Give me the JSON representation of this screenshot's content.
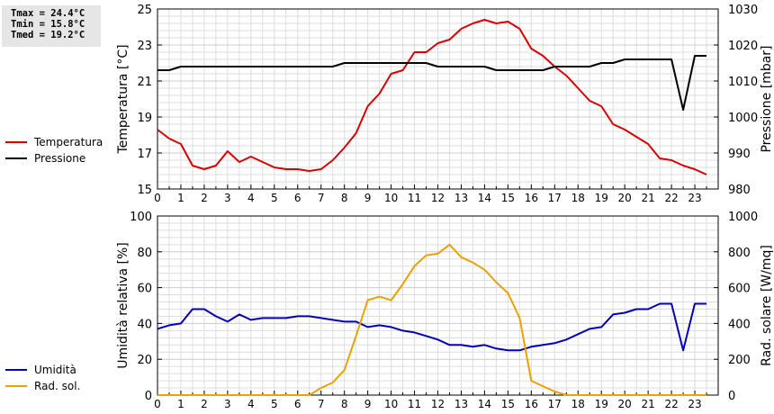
{
  "stats": [
    "Tmax = 24.4°C",
    "Tmin = 15.8°C",
    "Tmed = 19.2°C"
  ],
  "chart_data": [
    {
      "type": "line",
      "x_tick_labels": [
        "0",
        "1",
        "2",
        "3",
        "4",
        "5",
        "6",
        "7",
        "8",
        "9",
        "10",
        "11",
        "12",
        "13",
        "14",
        "15",
        "16",
        "17",
        "18",
        "19",
        "20",
        "21",
        "22",
        "23"
      ],
      "xlim": [
        0,
        24
      ],
      "ylabel": "Temperatura [°C]",
      "ylim": [
        15,
        25
      ],
      "y_ticks": [
        "15",
        "17",
        "19",
        "21",
        "23",
        "25"
      ],
      "y2label": "Pressione [mbar]",
      "y2lim": [
        980,
        1030
      ],
      "y2_ticks": [
        "980",
        "990",
        "1000",
        "1010",
        "1020",
        "1030"
      ],
      "grid": true,
      "legend_position": "left",
      "series": [
        {
          "name": "Temperatura",
          "axis": "left",
          "color": "#e00000",
          "x": [
            0,
            0.5,
            1,
            1.5,
            2,
            2.5,
            3,
            3.5,
            4,
            4.5,
            5,
            5.5,
            6,
            6.5,
            7,
            7.5,
            8,
            8.5,
            9,
            9.5,
            10,
            10.5,
            11,
            11.5,
            12,
            12.5,
            13,
            13.5,
            14,
            14.5,
            15,
            15.5,
            16,
            16.5,
            17,
            17.5,
            18,
            18.5,
            19,
            19.5,
            20,
            20.5,
            21,
            21.5,
            22,
            22.5,
            23,
            23.5
          ],
          "values": [
            18.3,
            17.8,
            17.5,
            16.3,
            16.1,
            16.3,
            17.1,
            16.5,
            16.8,
            16.5,
            16.2,
            16.1,
            16.1,
            16.0,
            16.1,
            16.6,
            17.3,
            18.1,
            19.6,
            20.3,
            21.4,
            21.6,
            22.6,
            22.6,
            23.1,
            23.3,
            23.9,
            24.2,
            24.4,
            24.2,
            24.3,
            23.9,
            22.8,
            22.4,
            21.8,
            21.3,
            20.6,
            19.9,
            19.6,
            18.6,
            18.3,
            17.9,
            17.5,
            16.7,
            16.6,
            16.3,
            16.1,
            15.8
          ]
        },
        {
          "name": "Pressione",
          "axis": "right",
          "color": "#000000",
          "x": [
            0,
            0.5,
            1,
            1.5,
            2,
            2.5,
            3,
            3.5,
            4,
            4.5,
            5,
            5.5,
            6,
            6.5,
            7,
            7.5,
            8,
            8.5,
            9,
            9.5,
            10,
            10.5,
            11,
            11.5,
            12,
            12.5,
            13,
            13.5,
            14,
            14.5,
            15,
            15.5,
            16,
            16.5,
            17,
            17.5,
            18,
            18.5,
            19,
            19.5,
            20,
            20.5,
            21,
            21.5,
            22,
            22.5,
            23,
            23.5
          ],
          "values": [
            1013,
            1013,
            1014,
            1014,
            1014,
            1014,
            1014,
            1014,
            1014,
            1014,
            1014,
            1014,
            1014,
            1014,
            1014,
            1014,
            1015,
            1015,
            1015,
            1015,
            1015,
            1015,
            1015,
            1015,
            1014,
            1014,
            1014,
            1014,
            1014,
            1013,
            1013,
            1013,
            1013,
            1013,
            1014,
            1014,
            1014,
            1014,
            1015,
            1015,
            1016,
            1016,
            1016,
            1016,
            1016,
            1002,
            1017,
            1017
          ]
        }
      ]
    },
    {
      "type": "line",
      "x_tick_labels": [
        "0",
        "1",
        "2",
        "3",
        "4",
        "5",
        "6",
        "7",
        "8",
        "9",
        "10",
        "11",
        "12",
        "13",
        "14",
        "15",
        "16",
        "17",
        "18",
        "19",
        "20",
        "21",
        "22",
        "23"
      ],
      "xlim": [
        0,
        24
      ],
      "ylabel": "Umidità relativa [%]",
      "ylim": [
        0,
        100
      ],
      "y_ticks": [
        "0",
        "20",
        "40",
        "60",
        "80",
        "100"
      ],
      "y2label": "Rad. solare [W/mq]",
      "y2lim": [
        0,
        1000
      ],
      "y2_ticks": [
        "0",
        "200",
        "400",
        "600",
        "800",
        "1000"
      ],
      "grid": true,
      "legend_position": "left",
      "series": [
        {
          "name": "Umidità",
          "axis": "left",
          "color": "#0000c0",
          "x": [
            0,
            0.5,
            1,
            1.5,
            2,
            2.5,
            3,
            3.5,
            4,
            4.5,
            5,
            5.5,
            6,
            6.5,
            7,
            7.5,
            8,
            8.5,
            9,
            9.5,
            10,
            10.5,
            11,
            11.5,
            12,
            12.5,
            13,
            13.5,
            14,
            14.5,
            15,
            15.5,
            16,
            16.5,
            17,
            17.5,
            18,
            18.5,
            19,
            19.5,
            20,
            20.5,
            21,
            21.5,
            22,
            22.5,
            23,
            23.5
          ],
          "values": [
            37,
            39,
            40,
            48,
            48,
            44,
            41,
            45,
            42,
            43,
            43,
            43,
            44,
            44,
            43,
            42,
            41,
            41,
            38,
            39,
            38,
            36,
            35,
            33,
            31,
            28,
            28,
            27,
            28,
            26,
            25,
            25,
            27,
            28,
            29,
            31,
            34,
            37,
            38,
            45,
            46,
            48,
            48,
            51,
            51,
            25,
            51,
            51
          ]
        },
        {
          "name": "Rad. sol.",
          "axis": "right",
          "color": "#f0a000",
          "x": [
            0,
            0.5,
            1,
            1.5,
            2,
            2.5,
            3,
            3.5,
            4,
            4.5,
            5,
            5.5,
            6,
            6.5,
            7,
            7.5,
            8,
            8.5,
            9,
            9.5,
            10,
            10.5,
            11,
            11.5,
            12,
            12.5,
            13,
            13.5,
            14,
            14.5,
            15,
            15.5,
            16,
            16.5,
            17,
            17.5,
            18,
            18.5,
            19,
            19.5,
            20,
            20.5,
            21,
            21.5,
            22,
            22.5,
            23,
            23.5
          ],
          "values": [
            0,
            0,
            0,
            0,
            0,
            0,
            0,
            0,
            0,
            0,
            0,
            0,
            0,
            0,
            40,
            70,
            140,
            330,
            530,
            550,
            530,
            620,
            720,
            780,
            790,
            840,
            770,
            740,
            700,
            630,
            570,
            430,
            80,
            50,
            20,
            0,
            0,
            0,
            0,
            0,
            0,
            0,
            0,
            0,
            0,
            0,
            0,
            0
          ]
        }
      ]
    }
  ]
}
